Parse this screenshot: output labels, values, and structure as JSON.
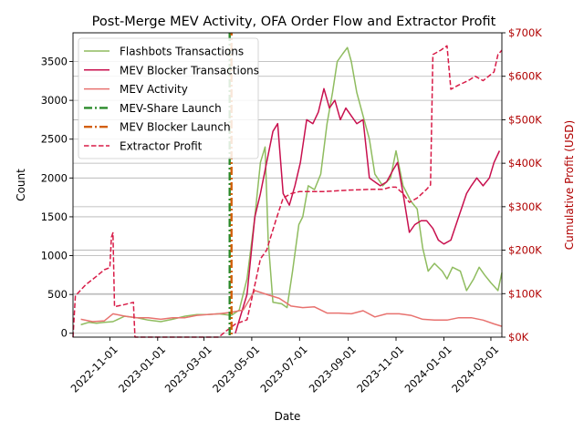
{
  "chart_data": {
    "type": "line",
    "title": "Post-Merge MEV Activity, OFA Order Flow and Extractor Profit",
    "xlabel": "Date",
    "ylabel_left": "Count",
    "ylabel_right": "Cumulative Profit (USD)",
    "x_tick_labels": [
      "2022-11-01",
      "2023-01-01",
      "2023-03-01",
      "2023-05-01",
      "2023-07-01",
      "2023-09-01",
      "2023-11-01",
      "2024-01-01",
      "2024-03-01"
    ],
    "x_tick_dates": [
      "2022-11-01",
      "2023-01-01",
      "2023-03-01",
      "2023-05-01",
      "2023-07-01",
      "2023-09-01",
      "2023-11-01",
      "2024-01-01",
      "2024-03-01"
    ],
    "xlim": [
      "2022-09-15",
      "2024-03-15"
    ],
    "ylim_left": [
      -50,
      3870
    ],
    "y_left_ticks": [
      0,
      500,
      1000,
      1500,
      2000,
      2500,
      3000,
      3500
    ],
    "ylim_right": [
      0,
      700000
    ],
    "y_right_ticks": [
      0,
      100000,
      200000,
      300000,
      400000,
      500000,
      600000,
      700000
    ],
    "y_right_tick_labels": [
      "$0K",
      "$100K",
      "$200K",
      "$300K",
      "$400K",
      "$500K",
      "$600K",
      "$700K"
    ],
    "grid": "horizontal",
    "legend_position": "top-left",
    "colors": {
      "flashbots": "#8fbc5f",
      "mev_blocker": "#c8104e",
      "mev_activity": "#e8726f",
      "mev_share_launch": "#2a8a2a",
      "mev_blocker_launch": "#d35f0a",
      "extractor_profit": "#d81b47",
      "right_axis": "#b00000"
    },
    "vlines": [
      {
        "name": "MEV-Share Launch",
        "date": "2023-04-04"
      },
      {
        "name": "MEV Blocker Launch",
        "date": "2023-04-04"
      }
    ],
    "series": [
      {
        "name": "Flashbots Transactions",
        "axis": "left",
        "points": [
          [
            "2022-09-25",
            110
          ],
          [
            "2022-10-05",
            140
          ],
          [
            "2022-10-15",
            130
          ],
          [
            "2022-10-25",
            140
          ],
          [
            "2022-11-05",
            150
          ],
          [
            "2022-11-20",
            220
          ],
          [
            "2022-12-05",
            200
          ],
          [
            "2022-12-20",
            170
          ],
          [
            "2023-01-05",
            150
          ],
          [
            "2023-01-20",
            180
          ],
          [
            "2023-02-05",
            220
          ],
          [
            "2023-02-20",
            240
          ],
          [
            "2023-03-05",
            240
          ],
          [
            "2023-03-20",
            250
          ],
          [
            "2023-04-05",
            230
          ],
          [
            "2023-04-15",
            300
          ],
          [
            "2023-04-25",
            700
          ],
          [
            "2023-05-05",
            1500
          ],
          [
            "2023-05-12",
            2200
          ],
          [
            "2023-05-18",
            2400
          ],
          [
            "2023-05-22",
            1200
          ],
          [
            "2023-05-28",
            400
          ],
          [
            "2023-06-08",
            380
          ],
          [
            "2023-06-15",
            330
          ],
          [
            "2023-06-22",
            800
          ],
          [
            "2023-06-30",
            1400
          ],
          [
            "2023-07-05",
            1500
          ],
          [
            "2023-07-12",
            1900
          ],
          [
            "2023-07-20",
            1850
          ],
          [
            "2023-07-28",
            2050
          ],
          [
            "2023-08-05",
            2700
          ],
          [
            "2023-08-12",
            3100
          ],
          [
            "2023-08-18",
            3500
          ],
          [
            "2023-08-25",
            3600
          ],
          [
            "2023-08-31",
            3680
          ],
          [
            "2023-09-05",
            3500
          ],
          [
            "2023-09-12",
            3100
          ],
          [
            "2023-09-20",
            2800
          ],
          [
            "2023-09-28",
            2500
          ],
          [
            "2023-10-05",
            2050
          ],
          [
            "2023-10-15",
            1900
          ],
          [
            "2023-10-25",
            2000
          ],
          [
            "2023-11-01",
            2350
          ],
          [
            "2023-11-10",
            1900
          ],
          [
            "2023-11-20",
            1700
          ],
          [
            "2023-11-28",
            1600
          ],
          [
            "2023-12-05",
            1100
          ],
          [
            "2023-12-12",
            800
          ],
          [
            "2023-12-20",
            900
          ],
          [
            "2023-12-30",
            800
          ],
          [
            "2024-01-05",
            700
          ],
          [
            "2024-01-12",
            850
          ],
          [
            "2024-01-22",
            800
          ],
          [
            "2024-01-30",
            550
          ],
          [
            "2024-02-08",
            700
          ],
          [
            "2024-02-15",
            850
          ],
          [
            "2024-02-22",
            750
          ],
          [
            "2024-03-01",
            650
          ],
          [
            "2024-03-10",
            550
          ],
          [
            "2024-03-15",
            780
          ]
        ]
      },
      {
        "name": "MEV Blocker Transactions",
        "axis": "left",
        "points": [
          [
            "2023-04-10",
            0
          ],
          [
            "2023-04-25",
            500
          ],
          [
            "2023-05-05",
            1500
          ],
          [
            "2023-05-12",
            1800
          ],
          [
            "2023-05-20",
            2200
          ],
          [
            "2023-05-28",
            2600
          ],
          [
            "2023-06-03",
            2700
          ],
          [
            "2023-06-10",
            1800
          ],
          [
            "2023-06-18",
            1650
          ],
          [
            "2023-06-25",
            1900
          ],
          [
            "2023-07-02",
            2200
          ],
          [
            "2023-07-10",
            2750
          ],
          [
            "2023-07-18",
            2700
          ],
          [
            "2023-07-25",
            2850
          ],
          [
            "2023-08-01",
            3150
          ],
          [
            "2023-08-08",
            2900
          ],
          [
            "2023-08-15",
            3000
          ],
          [
            "2023-08-22",
            2750
          ],
          [
            "2023-08-29",
            2900
          ],
          [
            "2023-09-05",
            2800
          ],
          [
            "2023-09-12",
            2700
          ],
          [
            "2023-09-20",
            2750
          ],
          [
            "2023-09-28",
            2000
          ],
          [
            "2023-10-05",
            1950
          ],
          [
            "2023-10-12",
            1900
          ],
          [
            "2023-10-20",
            1950
          ],
          [
            "2023-10-28",
            2100
          ],
          [
            "2023-11-03",
            2200
          ],
          [
            "2023-11-10",
            1800
          ],
          [
            "2023-11-18",
            1300
          ],
          [
            "2023-11-25",
            1400
          ],
          [
            "2023-12-03",
            1450
          ],
          [
            "2023-12-10",
            1450
          ],
          [
            "2023-12-18",
            1350
          ],
          [
            "2023-12-25",
            1200
          ],
          [
            "2024-01-01",
            1150
          ],
          [
            "2024-01-10",
            1200
          ],
          [
            "2024-01-20",
            1500
          ],
          [
            "2024-01-30",
            1800
          ],
          [
            "2024-02-05",
            1900
          ],
          [
            "2024-02-12",
            2000
          ],
          [
            "2024-02-20",
            1900
          ],
          [
            "2024-02-28",
            2000
          ],
          [
            "2024-03-05",
            2200
          ],
          [
            "2024-03-12",
            2350
          ]
        ]
      },
      {
        "name": "MEV Activity",
        "axis": "left",
        "points": [
          [
            "2022-09-25",
            180
          ],
          [
            "2022-10-10",
            150
          ],
          [
            "2022-10-25",
            160
          ],
          [
            "2022-11-05",
            250
          ],
          [
            "2022-11-20",
            220
          ],
          [
            "2022-12-05",
            200
          ],
          [
            "2022-12-20",
            200
          ],
          [
            "2023-01-05",
            180
          ],
          [
            "2023-01-20",
            200
          ],
          [
            "2023-02-05",
            200
          ],
          [
            "2023-02-20",
            230
          ],
          [
            "2023-03-05",
            240
          ],
          [
            "2023-03-20",
            250
          ],
          [
            "2023-04-05",
            270
          ],
          [
            "2023-04-20",
            300
          ],
          [
            "2023-05-05",
            550
          ],
          [
            "2023-05-20",
            500
          ],
          [
            "2023-06-05",
            450
          ],
          [
            "2023-06-20",
            350
          ],
          [
            "2023-07-05",
            330
          ],
          [
            "2023-07-20",
            340
          ],
          [
            "2023-08-05",
            260
          ],
          [
            "2023-08-20",
            260
          ],
          [
            "2023-09-05",
            250
          ],
          [
            "2023-09-20",
            290
          ],
          [
            "2023-10-05",
            210
          ],
          [
            "2023-10-20",
            250
          ],
          [
            "2023-11-05",
            250
          ],
          [
            "2023-11-20",
            230
          ],
          [
            "2023-12-05",
            180
          ],
          [
            "2023-12-20",
            170
          ],
          [
            "2024-01-05",
            170
          ],
          [
            "2024-01-20",
            200
          ],
          [
            "2024-02-05",
            200
          ],
          [
            "2024-02-20",
            170
          ],
          [
            "2024-03-05",
            120
          ],
          [
            "2024-03-15",
            90
          ]
        ]
      },
      {
        "name": "Extractor Profit",
        "axis": "right",
        "points": [
          [
            "2022-09-15",
            0
          ],
          [
            "2022-09-18",
            95000
          ],
          [
            "2022-10-01",
            120000
          ],
          [
            "2022-10-15",
            140000
          ],
          [
            "2022-10-25",
            155000
          ],
          [
            "2022-11-01",
            160000
          ],
          [
            "2022-11-03",
            230000
          ],
          [
            "2022-11-05",
            240000
          ],
          [
            "2022-11-07",
            70000
          ],
          [
            "2022-11-20",
            75000
          ],
          [
            "2022-12-01",
            80000
          ],
          [
            "2022-12-03",
            0
          ],
          [
            "2023-03-20",
            0
          ],
          [
            "2023-03-30",
            15000
          ],
          [
            "2023-04-10",
            30000
          ],
          [
            "2023-04-25",
            40000
          ],
          [
            "2023-05-05",
            120000
          ],
          [
            "2023-05-12",
            180000
          ],
          [
            "2023-05-20",
            200000
          ],
          [
            "2023-06-01",
            270000
          ],
          [
            "2023-06-10",
            320000
          ],
          [
            "2023-06-20",
            330000
          ],
          [
            "2023-07-01",
            335000
          ],
          [
            "2023-08-01",
            335000
          ],
          [
            "2023-09-01",
            338000
          ],
          [
            "2023-10-01",
            340000
          ],
          [
            "2023-10-15",
            340000
          ],
          [
            "2023-10-25",
            345000
          ],
          [
            "2023-11-01",
            345000
          ],
          [
            "2023-11-10",
            330000
          ],
          [
            "2023-11-18",
            310000
          ],
          [
            "2023-11-28",
            320000
          ],
          [
            "2023-12-10",
            340000
          ],
          [
            "2023-12-15",
            350000
          ],
          [
            "2023-12-18",
            650000
          ],
          [
            "2023-12-28",
            660000
          ],
          [
            "2024-01-05",
            670000
          ],
          [
            "2024-01-10",
            570000
          ],
          [
            "2024-01-20",
            580000
          ],
          [
            "2024-02-01",
            590000
          ],
          [
            "2024-02-10",
            600000
          ],
          [
            "2024-02-20",
            590000
          ],
          [
            "2024-03-05",
            610000
          ],
          [
            "2024-03-10",
            650000
          ],
          [
            "2024-03-15",
            660000
          ]
        ]
      }
    ]
  }
}
